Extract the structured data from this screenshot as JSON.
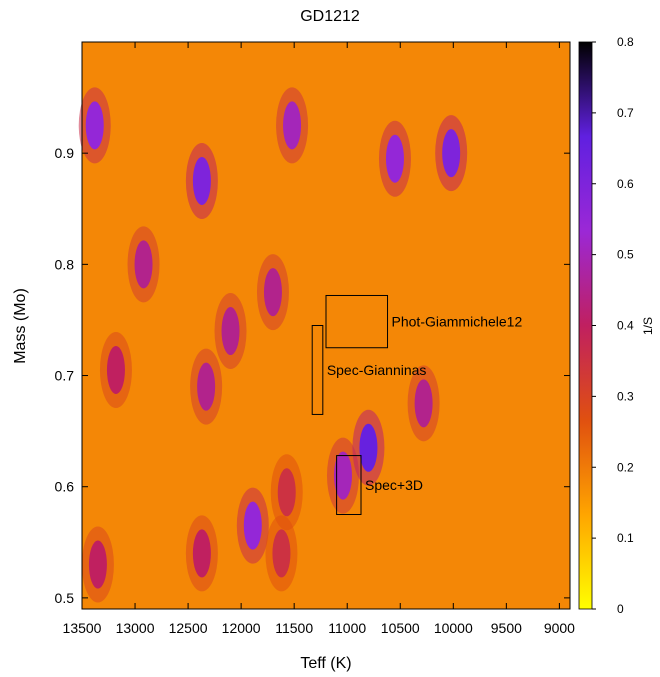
{
  "chart_data": {
    "type": "heatmap",
    "title": "GD1212",
    "xlabel": "Teff (K)",
    "ylabel": "Mass (Mo)",
    "colorbar_label": "1/S",
    "x_reversed": true,
    "xlim": [
      13500,
      8900
    ],
    "ylim": [
      0.49,
      1.0
    ],
    "x_ticks": [
      13500,
      13000,
      12500,
      12000,
      11500,
      11000,
      10500,
      10000,
      9500,
      9000
    ],
    "y_ticks": [
      0.5,
      0.6,
      0.7,
      0.8,
      0.9
    ],
    "colorbar_range": [
      0,
      0.8
    ],
    "colorbar_ticks": [
      0,
      0.1,
      0.2,
      0.3,
      0.4,
      0.5,
      0.6,
      0.7,
      0.8
    ],
    "colormap": [
      "#ffff00",
      "#ffa500",
      "#e05010",
      "#c02060",
      "#9b28d6",
      "#6020e0",
      "#000000"
    ],
    "background_value": 0.18,
    "blobs": [
      {
        "teff": 13380,
        "mass": 0.925,
        "value": 0.55
      },
      {
        "teff": 12370,
        "mass": 0.875,
        "value": 0.6
      },
      {
        "teff": 11520,
        "mass": 0.925,
        "value": 0.5
      },
      {
        "teff": 10550,
        "mass": 0.895,
        "value": 0.55
      },
      {
        "teff": 10020,
        "mass": 0.9,
        "value": 0.6
      },
      {
        "teff": 12920,
        "mass": 0.8,
        "value": 0.45
      },
      {
        "teff": 11700,
        "mass": 0.775,
        "value": 0.45
      },
      {
        "teff": 12100,
        "mass": 0.74,
        "value": 0.45
      },
      {
        "teff": 13180,
        "mass": 0.705,
        "value": 0.4
      },
      {
        "teff": 12330,
        "mass": 0.69,
        "value": 0.45
      },
      {
        "teff": 11570,
        "mass": 0.595,
        "value": 0.35
      },
      {
        "teff": 11040,
        "mass": 0.61,
        "value": 0.5
      },
      {
        "teff": 10800,
        "mass": 0.635,
        "value": 0.65
      },
      {
        "teff": 10280,
        "mass": 0.675,
        "value": 0.45
      },
      {
        "teff": 11890,
        "mass": 0.565,
        "value": 0.55
      },
      {
        "teff": 12370,
        "mass": 0.54,
        "value": 0.4
      },
      {
        "teff": 11620,
        "mass": 0.54,
        "value": 0.35
      },
      {
        "teff": 13350,
        "mass": 0.53,
        "value": 0.4
      }
    ],
    "boxes": [
      {
        "label": "Phot-Giammichele12",
        "teff": [
          11200,
          10620
        ],
        "mass": [
          0.725,
          0.772
        ]
      },
      {
        "label": "Spec-Gianninas",
        "teff": [
          11330,
          11230
        ],
        "mass": [
          0.665,
          0.745
        ]
      },
      {
        "label": "Spec+3D",
        "teff": [
          11100,
          10870
        ],
        "mass": [
          0.575,
          0.628
        ]
      }
    ]
  }
}
